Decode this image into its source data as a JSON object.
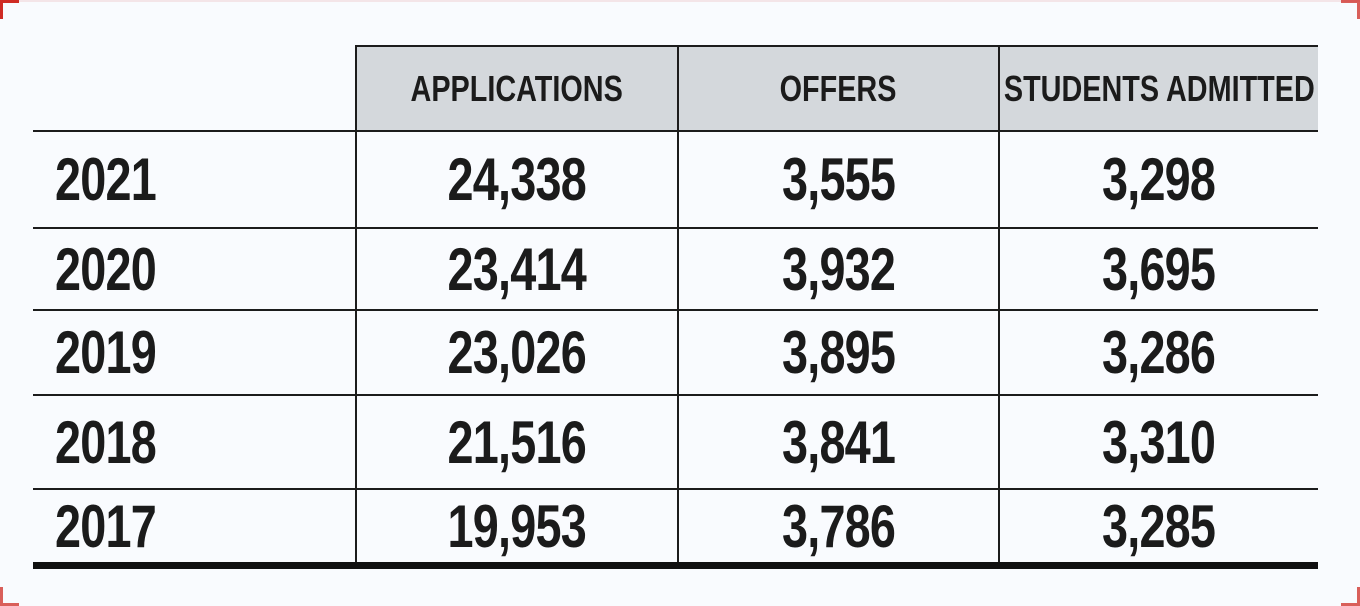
{
  "styles": {
    "background": "#f9fbfe",
    "header_bg": "#d4d8dc",
    "grid_line": "#1c1c1c",
    "text": "#1b1b1b",
    "corner_mark_red": "#cf2b24"
  },
  "chart_data": {
    "type": "table",
    "title": "",
    "columns": [
      "",
      "APPLICATIONS",
      "OFFERS",
      "STUDENTS ADMITTED"
    ],
    "rows": [
      {
        "year": "2021",
        "applications": "24,338",
        "offers": "3,555",
        "students_admitted": "3,298"
      },
      {
        "year": "2020",
        "applications": "23,414",
        "offers": "3,932",
        "students_admitted": "3,695"
      },
      {
        "year": "2019",
        "applications": "23,026",
        "offers": "3,895",
        "students_admitted": "3,286"
      },
      {
        "year": "2018",
        "applications": "21,516",
        "offers": "3,841",
        "students_admitted": "3,310"
      },
      {
        "year": "2017",
        "applications": "19,953",
        "offers": "3,786",
        "students_admitted": "3,285"
      }
    ],
    "numeric": {
      "years": [
        2021,
        2020,
        2019,
        2018,
        2017
      ],
      "applications": [
        24338,
        23414,
        23026,
        21516,
        19953
      ],
      "offers": [
        3555,
        3932,
        3895,
        3841,
        3786
      ],
      "students_admitted": [
        3298,
        3695,
        3286,
        3310,
        3285
      ]
    },
    "layout": {
      "header_fill": true,
      "first_column_header_empty": true,
      "outer_left_right_borders": false,
      "thick_bottom_border": true
    }
  }
}
